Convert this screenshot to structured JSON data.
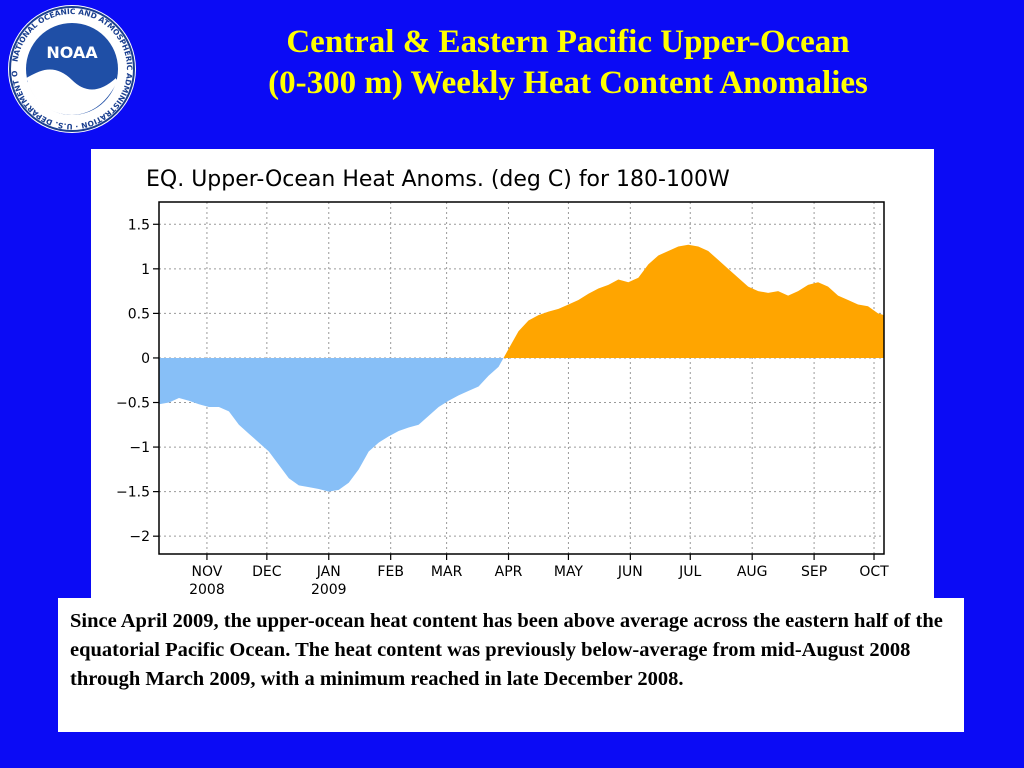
{
  "header": {
    "logo_text": "NOAA",
    "logo_ring_text": "NATIONAL OCEANIC AND ATMOSPHERIC ADMINISTRATION · U.S. DEPARTMENT OF COMMERCE",
    "title_line1": "Central & Eastern Pacific Upper-Ocean",
    "title_line2": "(0-300 m) Weekly Heat Content Anomalies"
  },
  "caption": "Since April 2009, the upper-ocean heat content has been above average across the eastern half of the equatorial Pacific Ocean. The heat content was previously below-average from mid-August 2008 through March 2009, with a minimum reached in late December 2008.",
  "colors": {
    "background": "#0b0bf5",
    "title": "#ffff00",
    "positive_fill": "#ffa500",
    "negative_fill": "#87bff7"
  },
  "chart_data": {
    "type": "area",
    "title": "EQ. Upper-Ocean Heat Anoms. (deg C) for 180-100W",
    "xlabel": "",
    "ylabel": "",
    "ylim": [
      -2.2,
      1.75
    ],
    "yticks": [
      1.5,
      1,
      0.5,
      0,
      -0.5,
      -1,
      -1.5,
      -2
    ],
    "ytick_labels": [
      "1.5",
      "1",
      "0.5",
      "0",
      "−0.5",
      "−1",
      "−1.5",
      "−2"
    ],
    "xticks": [
      {
        "date": "2008-11-01",
        "label": "NOV",
        "sublabel": "2008"
      },
      {
        "date": "2008-12-01",
        "label": "DEC",
        "sublabel": ""
      },
      {
        "date": "2009-01-01",
        "label": "JAN",
        "sublabel": "2009"
      },
      {
        "date": "2009-02-01",
        "label": "FEB",
        "sublabel": ""
      },
      {
        "date": "2009-03-01",
        "label": "MAR",
        "sublabel": ""
      },
      {
        "date": "2009-04-01",
        "label": "APR",
        "sublabel": ""
      },
      {
        "date": "2009-05-01",
        "label": "MAY",
        "sublabel": ""
      },
      {
        "date": "2009-06-01",
        "label": "JUN",
        "sublabel": ""
      },
      {
        "date": "2009-07-01",
        "label": "JUL",
        "sublabel": ""
      },
      {
        "date": "2009-08-01",
        "label": "AUG",
        "sublabel": ""
      },
      {
        "date": "2009-09-01",
        "label": "SEP",
        "sublabel": ""
      },
      {
        "date": "2009-10-01",
        "label": "OCT",
        "sublabel": ""
      }
    ],
    "xlim": [
      "2008-10-08",
      "2009-10-06"
    ],
    "grid": true,
    "series": [
      {
        "x": [
          "2008-10-08",
          "2008-10-13",
          "2008-10-18",
          "2008-10-23",
          "2008-10-28",
          "2008-11-02",
          "2008-11-07",
          "2008-11-12",
          "2008-11-17",
          "2008-11-22",
          "2008-11-27",
          "2008-12-02",
          "2008-12-07",
          "2008-12-12",
          "2008-12-17",
          "2008-12-22",
          "2008-12-27",
          "2009-01-01",
          "2009-01-06",
          "2009-01-11",
          "2009-01-16",
          "2009-01-21",
          "2009-01-26",
          "2009-01-31",
          "2009-02-05",
          "2009-02-10",
          "2009-02-15",
          "2009-02-20",
          "2009-02-25",
          "2009-03-02",
          "2009-03-07",
          "2009-03-12",
          "2009-03-17",
          "2009-03-22",
          "2009-03-27",
          "2009-04-01",
          "2009-04-06",
          "2009-04-11",
          "2009-04-16",
          "2009-04-21",
          "2009-04-26",
          "2009-05-01",
          "2009-05-06",
          "2009-05-11",
          "2009-05-16",
          "2009-05-21",
          "2009-05-26",
          "2009-05-31",
          "2009-06-05",
          "2009-06-10",
          "2009-06-15",
          "2009-06-20",
          "2009-06-25",
          "2009-06-30",
          "2009-07-05",
          "2009-07-10",
          "2009-07-15",
          "2009-07-20",
          "2009-07-25",
          "2009-07-30",
          "2009-08-04",
          "2009-08-09",
          "2009-08-14",
          "2009-08-19",
          "2009-08-24",
          "2009-08-29",
          "2009-09-03",
          "2009-09-08",
          "2009-09-13",
          "2009-09-18",
          "2009-09-23",
          "2009-09-28",
          "2009-10-03",
          "2009-10-06"
        ],
        "y": [
          -0.52,
          -0.5,
          -0.45,
          -0.48,
          -0.52,
          -0.55,
          -0.55,
          -0.6,
          -0.75,
          -0.85,
          -0.95,
          -1.05,
          -1.2,
          -1.35,
          -1.43,
          -1.45,
          -1.47,
          -1.5,
          -1.48,
          -1.4,
          -1.25,
          -1.05,
          -0.95,
          -0.88,
          -0.82,
          -0.78,
          -0.75,
          -0.65,
          -0.55,
          -0.48,
          -0.42,
          -0.37,
          -0.32,
          -0.2,
          -0.1,
          0.1,
          0.3,
          0.42,
          0.48,
          0.52,
          0.55,
          0.6,
          0.65,
          0.72,
          0.78,
          0.82,
          0.88,
          0.85,
          0.9,
          1.05,
          1.15,
          1.2,
          1.25,
          1.27,
          1.25,
          1.2,
          1.1,
          1.0,
          0.9,
          0.8,
          0.75,
          0.73,
          0.75,
          0.7,
          0.75,
          0.82,
          0.85,
          0.8,
          0.7,
          0.65,
          0.6,
          0.58,
          0.5,
          0.48
        ]
      }
    ]
  }
}
